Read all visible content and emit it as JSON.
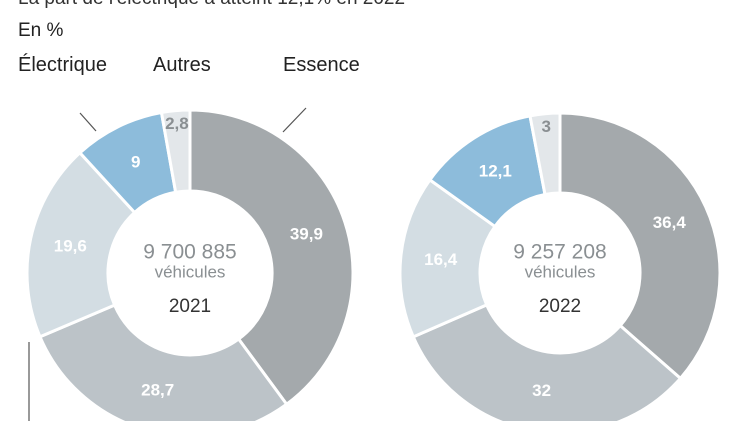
{
  "header": {
    "title": "La part de l'électrique a atteint 12,1% en 2022",
    "unit": "En %"
  },
  "legend": {
    "electric": "Électrique",
    "other": "Autres",
    "petrol": "Essence"
  },
  "colors": {
    "essence": "#a4a9ac",
    "segment_28": "#bcc3c8",
    "segment_19": "#d3dde3",
    "electrique": "#8dbcdb",
    "autres": "#e3e7ea"
  },
  "chart_data": [
    {
      "type": "pie",
      "title": "2021",
      "center_count": "9 700 885",
      "center_unit": "véhicules",
      "center_year": "2021",
      "slices": [
        {
          "value": 39.9,
          "label": "39,9",
          "color_key": "essence"
        },
        {
          "value": 28.7,
          "label": "28,7",
          "color_key": "segment_28"
        },
        {
          "value": 19.6,
          "label": "19,6",
          "color_key": "segment_19"
        },
        {
          "value": 9,
          "label": "9",
          "color_key": "electrique"
        },
        {
          "value": 2.8,
          "label": "2,8",
          "color_key": "autres"
        }
      ]
    },
    {
      "type": "pie",
      "title": "2022",
      "center_count": "9 257 208",
      "center_unit": "véhicules",
      "center_year": "2022",
      "slices": [
        {
          "value": 36.4,
          "label": "36,4",
          "color_key": "essence"
        },
        {
          "value": 32,
          "label": "32",
          "color_key": "segment_28"
        },
        {
          "value": 16.4,
          "label": "16,4",
          "color_key": "segment_19"
        },
        {
          "value": 12.1,
          "label": "12,1",
          "color_key": "electrique"
        },
        {
          "value": 3,
          "label": "3",
          "color_key": "autres"
        }
      ]
    }
  ]
}
